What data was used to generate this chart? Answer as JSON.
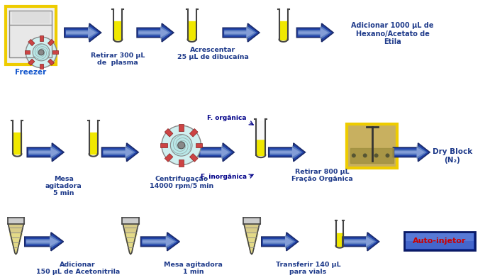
{
  "bg_color": "#ffffff",
  "arrow_color": "#1e3a8a",
  "arrow_fill_dark": "#3355aa",
  "arrow_fill_light": "#8899dd",
  "text_color": "#1e3a8a",
  "row1_labels": [
    "Freezer",
    "Retirar 300 μL\nde  plasma",
    "Acrescentar\n25 μL de dibucaína",
    "Adicionar 1000 μL de\nHexano/Acetato de\nEtila"
  ],
  "row2_labels": [
    "Mesa\nagitadora\n5 min",
    "Centrifugação\n14000 rpm/5 min",
    "Retirar 800 μL\nFração Orgânica",
    "Dry Block\n(N₂)"
  ],
  "row3_labels": [
    "Adicionar\n150 μL de Acetonitrila",
    "Mesa agitadora\n1 min",
    "Transferir 140 μL\npara vials",
    "Auto-injetor"
  ],
  "organic_label": "F. orgânica",
  "inorganic_label": "F. inorgânica",
  "liquid_yellow": "#f0e800",
  "tube_outline": "#444444",
  "freezer_border": "#eecc00",
  "dry_block_border": "#eecc00"
}
